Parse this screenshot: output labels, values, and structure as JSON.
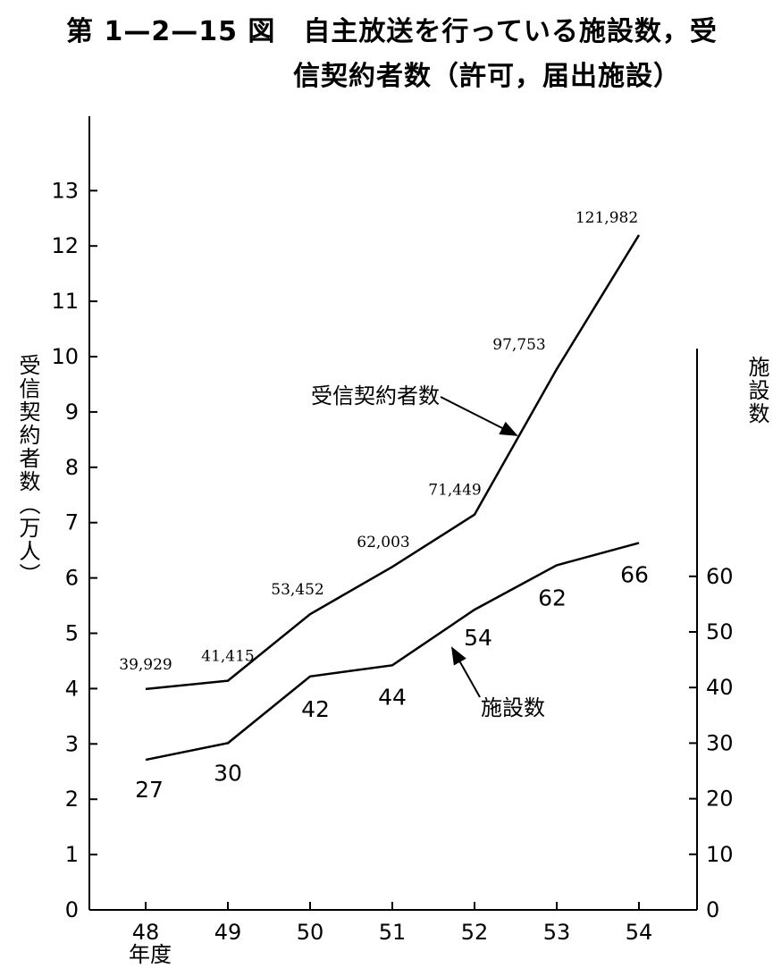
{
  "title_line1": "第 1—2—15 図　自主放送を行っている施設数，受",
  "title_line2": "信契約者数（許可，届出施設）",
  "chart_data": {
    "type": "line",
    "x": [
      "48",
      "49",
      "50",
      "51",
      "52",
      "53",
      "54"
    ],
    "xlabel": "年度",
    "y_left": {
      "label": "受信契約者数（万人）",
      "ticks": [
        "0",
        "1",
        "2",
        "3",
        "4",
        "5",
        "6",
        "7",
        "8",
        "9",
        "10",
        "11",
        "12",
        "13"
      ],
      "range": [
        0,
        13
      ]
    },
    "y_right": {
      "label": "施設数",
      "ticks": [
        "0",
        "10",
        "20",
        "30",
        "40",
        "50",
        "60"
      ],
      "range": [
        0,
        60
      ]
    },
    "series": [
      {
        "name": "受信契約者数",
        "axis": "left",
        "values": [
          39929,
          41415,
          53452,
          62003,
          71449,
          97753,
          121982
        ],
        "labels": [
          "39,929",
          "41,415",
          "53,452",
          "62,003",
          "71,449",
          "97,753",
          "121,982"
        ]
      },
      {
        "name": "施設数",
        "axis": "right",
        "values": [
          27,
          30,
          42,
          44,
          54,
          62,
          66
        ],
        "labels": [
          "27",
          "30",
          "42",
          "44",
          "54",
          "62",
          "66"
        ]
      }
    ],
    "grid": false,
    "color": "#000000"
  }
}
